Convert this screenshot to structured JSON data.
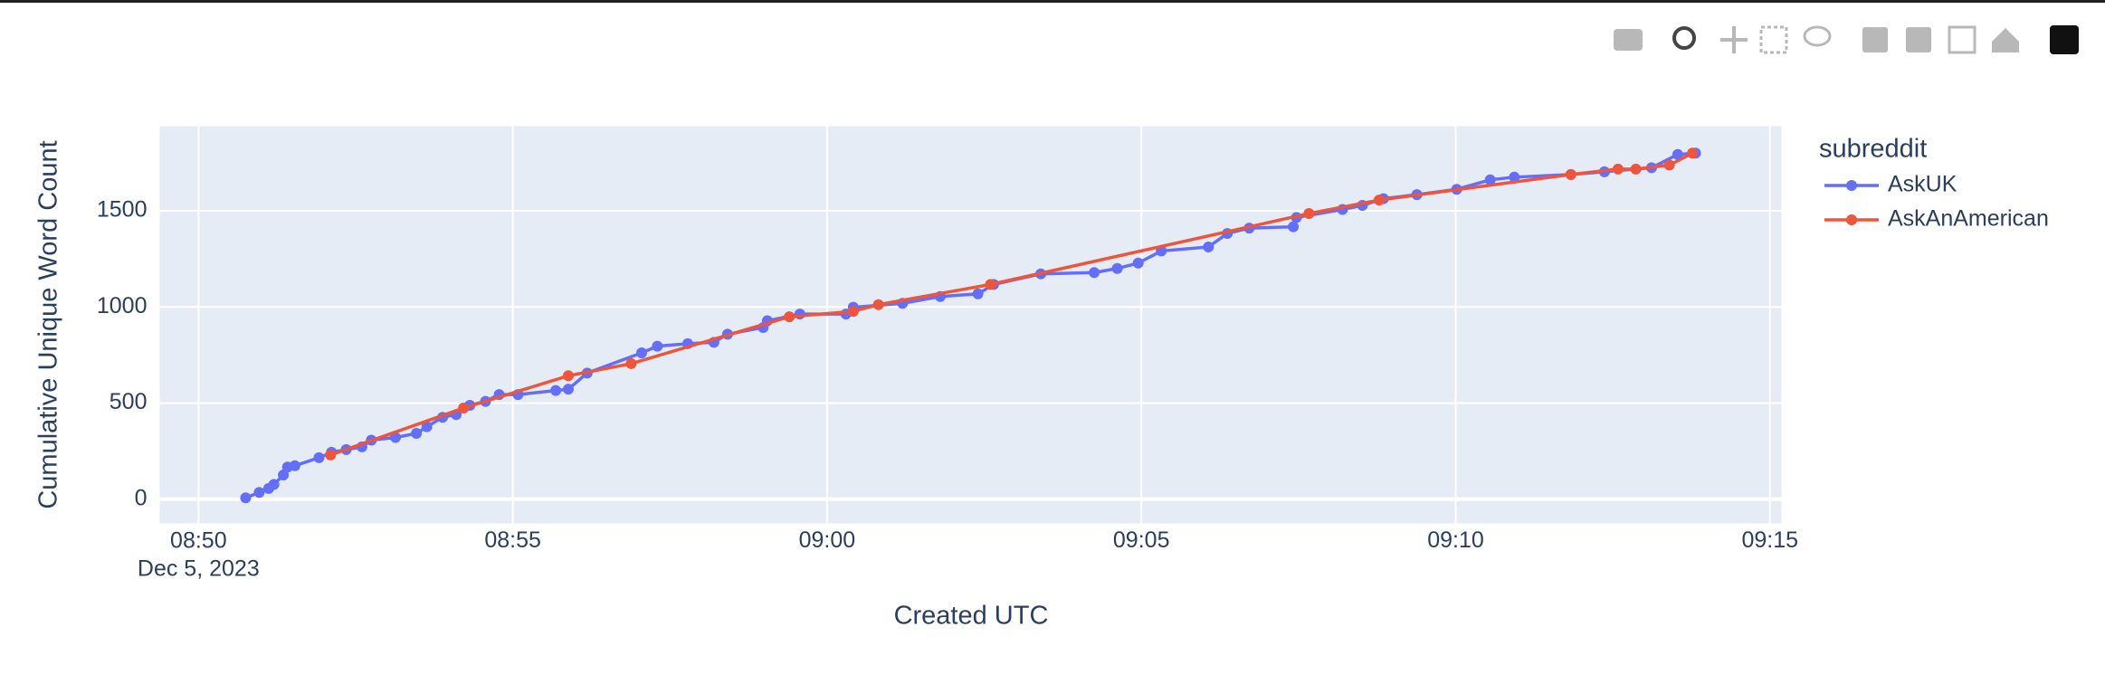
{
  "chart_data": {
    "type": "line",
    "x_label": "Created UTC",
    "y_label": "Cumulative Unique Word Count",
    "legend_title": "subreddit",
    "xlim": [
      "08:49:23",
      "09:15:11"
    ],
    "xticks": [
      {
        "value": "08:50",
        "label": "08:50\nDec 5, 2023"
      },
      "08:55",
      "09:00",
      "09:05",
      "09:10",
      "09:15"
    ],
    "ylim": [
      -126,
      1940
    ],
    "yticks": [
      0,
      500,
      1000,
      1500
    ],
    "grid": true,
    "series": [
      {
        "name": "AskUK",
        "color": "#636efa",
        "x": [
          "08:50:45",
          "08:50:58",
          "08:51:07",
          "08:51:12",
          "08:51:21",
          "08:51:25",
          "08:51:32",
          "08:51:55",
          "08:52:07",
          "08:52:21",
          "08:52:36",
          "08:52:45",
          "08:53:08",
          "08:53:28",
          "08:53:38",
          "08:53:53",
          "08:54:06",
          "08:54:19",
          "08:54:34",
          "08:54:47",
          "08:55:05",
          "08:55:41",
          "08:55:53",
          "08:56:11",
          "08:57:03",
          "08:57:18",
          "08:57:47",
          "08:58:12",
          "08:58:25",
          "08:58:59",
          "08:59:03",
          "08:59:34",
          "09:00:18",
          "09:00:25",
          "09:01:12",
          "09:01:48",
          "09:02:24",
          "09:02:39",
          "09:03:24",
          "09:04:15",
          "09:04:37",
          "09:04:57",
          "09:05:19",
          "09:06:04",
          "09:06:22",
          "09:06:43",
          "09:07:25",
          "09:07:28",
          "09:08:12",
          "09:08:31",
          "09:08:51",
          "09:09:23",
          "09:10:01",
          "09:10:33",
          "09:10:56",
          "09:11:50",
          "09:12:22",
          "09:13:07",
          "09:13:32",
          "09:13:49"
        ],
        "values": [
          7,
          35,
          56,
          77,
          126,
          167,
          174,
          216,
          244,
          258,
          272,
          307,
          321,
          342,
          377,
          426,
          440,
          488,
          509,
          544,
          544,
          565,
          572,
          656,
          761,
          796,
          809,
          816,
          858,
          893,
          928,
          963,
          963,
          998,
          1019,
          1054,
          1068,
          1117,
          1172,
          1179,
          1200,
          1228,
          1291,
          1312,
          1382,
          1410,
          1417,
          1465,
          1507,
          1528,
          1563,
          1584,
          1612,
          1661,
          1675,
          1689,
          1703,
          1724,
          1793,
          1800
        ]
      },
      {
        "name": "AskAnAmerican",
        "color": "#ef553b",
        "x": [
          "08:52:06",
          "08:54:13",
          "08:55:53",
          "08:56:53",
          "08:59:24",
          "09:00:25",
          "09:00:49",
          "09:02:36",
          "09:07:40",
          "09:08:47",
          "09:11:50",
          "09:12:35",
          "09:12:52",
          "09:13:24",
          "09:13:46"
        ],
        "values": [
          230,
          474,
          642,
          705,
          949,
          977,
          1012,
          1117,
          1486,
          1556,
          1689,
          1717,
          1717,
          1738,
          1800
        ]
      }
    ]
  }
}
